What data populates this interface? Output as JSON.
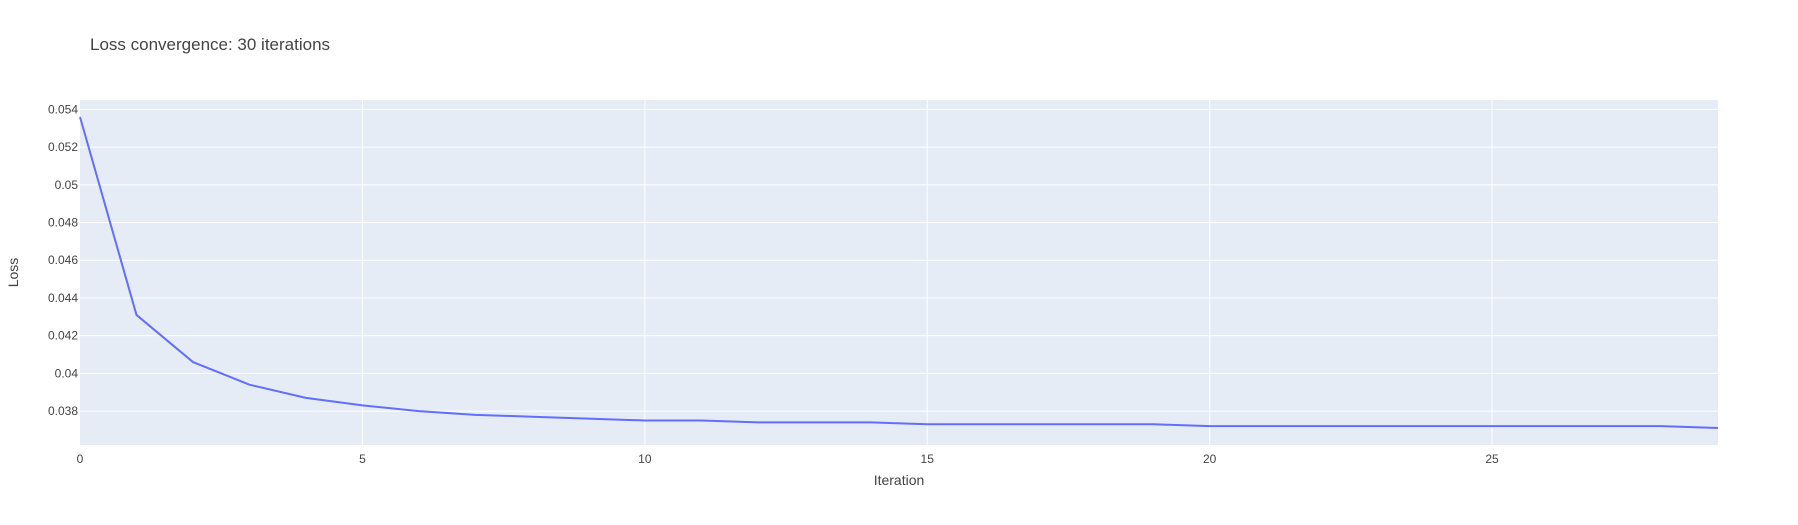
{
  "chart_data": {
    "type": "line",
    "title": "Loss convergence: 30 iterations",
    "xlabel": "Iteration",
    "ylabel": "Loss",
    "xlim": [
      0,
      29
    ],
    "ylim": [
      0.0362,
      0.0545
    ],
    "x_ticks": [
      0,
      5,
      10,
      15,
      20,
      25
    ],
    "y_ticks": [
      0.038,
      0.04,
      0.042,
      0.044,
      0.046,
      0.048,
      0.05,
      0.052,
      0.054
    ],
    "y_tick_labels": [
      "0.038",
      "0.04",
      "0.042",
      "0.044",
      "0.046",
      "0.048",
      "0.05",
      "0.052",
      "0.054"
    ],
    "grid": true,
    "colors": {
      "plot_background": "#e5ecf6",
      "grid": "#ffffff",
      "line": "#636efa",
      "text": "#444444"
    },
    "series": [
      {
        "x": [
          0,
          1,
          2,
          3,
          4,
          5,
          6,
          7,
          8,
          9,
          10,
          11,
          12,
          13,
          14,
          15,
          16,
          17,
          18,
          19,
          20,
          21,
          22,
          23,
          24,
          25,
          26,
          27,
          28,
          29
        ],
        "values": [
          0.0536,
          0.0431,
          0.0406,
          0.0394,
          0.0387,
          0.0383,
          0.038,
          0.0378,
          0.0377,
          0.0376,
          0.0375,
          0.0375,
          0.0374,
          0.0374,
          0.0374,
          0.0373,
          0.0373,
          0.0373,
          0.0373,
          0.0373,
          0.0372,
          0.0372,
          0.0372,
          0.0372,
          0.0372,
          0.0372,
          0.0372,
          0.0372,
          0.0372,
          0.0371
        ]
      }
    ]
  }
}
